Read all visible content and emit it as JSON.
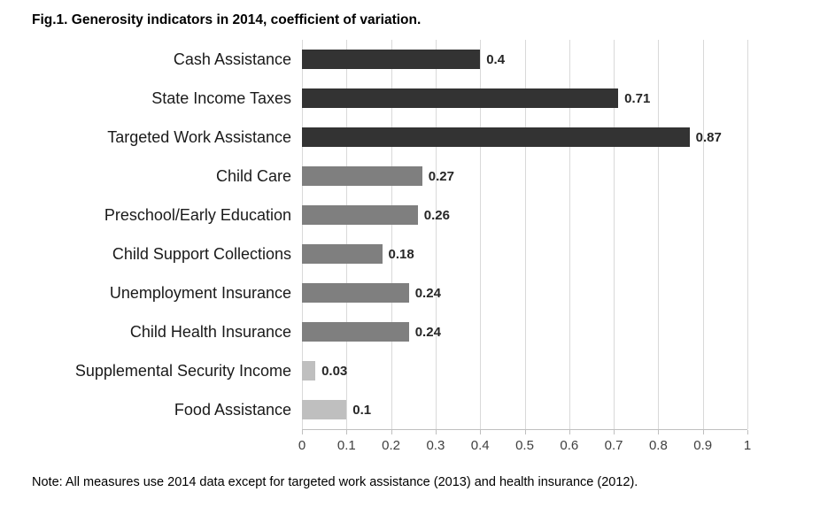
{
  "title": "Fig.1. Generosity indicators in 2014, coefficient of variation.",
  "note": "Note: All measures use 2014 data except for targeted work assistance (2013) and health insurance (2012).",
  "colors": {
    "dark_bar": "#333333",
    "medium_bar": "#7f7f7f",
    "light_bar": "#bfbfbf",
    "gridline": "#d9d9d9",
    "axis_line": "#bfbfbf",
    "tick_text": "#404040",
    "category_text": "#1a1a1a",
    "value_text": "#262626"
  },
  "chart_data": {
    "type": "bar",
    "orientation": "horizontal",
    "title": "Fig.1. Generosity indicators in 2014, coefficient of variation.",
    "categories": [
      "Cash Assistance",
      "State Income Taxes",
      "Targeted Work Assistance",
      "Child Care",
      "Preschool/Early Education",
      "Child Support Collections",
      "Unemployment Insurance",
      "Child Health Insurance",
      "Supplemental Security Income",
      "Food Assistance"
    ],
    "values": [
      0.4,
      0.71,
      0.87,
      0.27,
      0.26,
      0.18,
      0.24,
      0.24,
      0.03,
      0.1
    ],
    "value_labels": [
      "0.4",
      "0.71",
      "0.87",
      "0.27",
      "0.26",
      "0.18",
      "0.24",
      "0.24",
      "0.03",
      "0.1"
    ],
    "bar_colors": [
      "#333333",
      "#333333",
      "#333333",
      "#7f7f7f",
      "#7f7f7f",
      "#7f7f7f",
      "#7f7f7f",
      "#7f7f7f",
      "#bfbfbf",
      "#bfbfbf"
    ],
    "xlim": [
      0,
      1
    ],
    "x_ticks": [
      "0",
      "0.1",
      "0.2",
      "0.3",
      "0.4",
      "0.5",
      "0.6",
      "0.7",
      "0.8",
      "0.9",
      "1"
    ],
    "grid": true,
    "legend": "none",
    "xlabel": "",
    "ylabel": "",
    "note": "Note: All measures use 2014 data except for targeted work assistance (2013) and health insurance (2012)."
  }
}
